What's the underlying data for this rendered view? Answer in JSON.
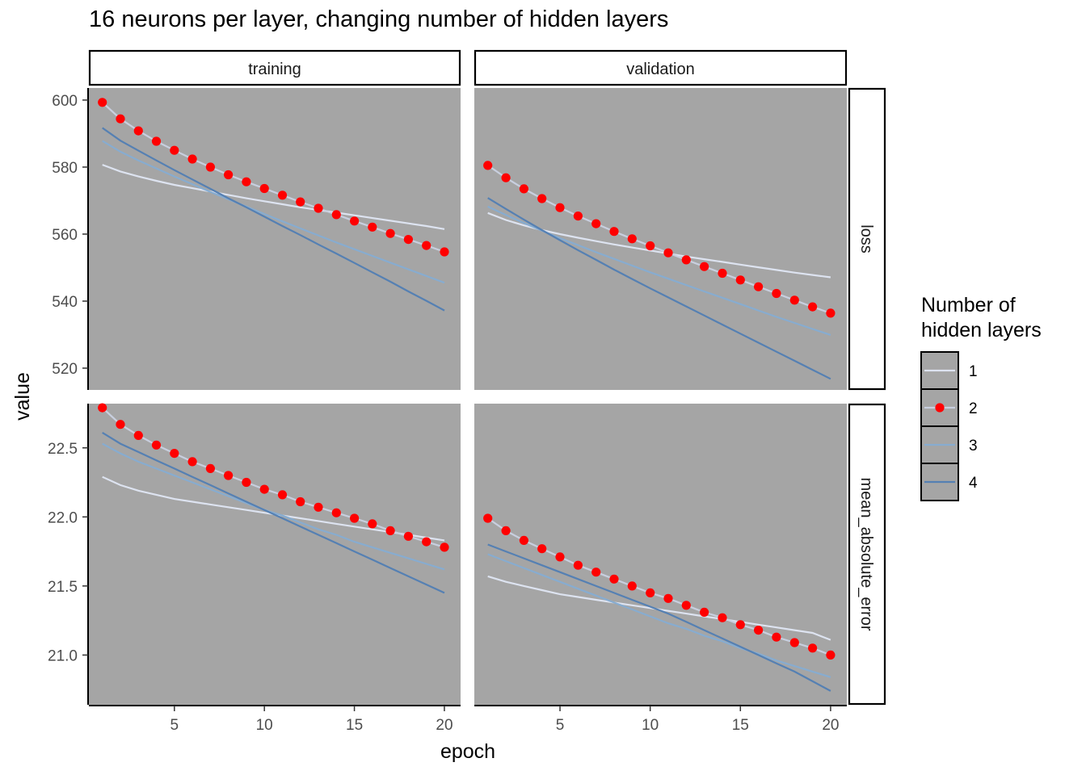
{
  "chart_data": {
    "type": "line",
    "title": "16 neurons per layer, changing number of hidden layers",
    "xlabel": "epoch",
    "ylabel": "value",
    "columns": [
      "training",
      "validation"
    ],
    "rows": [
      "loss",
      "mean_absolute_error"
    ],
    "x": [
      1,
      2,
      3,
      4,
      5,
      6,
      7,
      8,
      9,
      10,
      11,
      12,
      13,
      14,
      15,
      16,
      17,
      18,
      19,
      20
    ],
    "x_ticks": [
      5,
      10,
      15,
      20
    ],
    "xlim": [
      0.25,
      20.9
    ],
    "row_axes": {
      "loss": {
        "ylim": [
          513.5,
          603.6
        ],
        "ticks": [
          520,
          540,
          560,
          580,
          600
        ],
        "tick_labels": [
          "520",
          "540",
          "560",
          "580",
          "600"
        ]
      },
      "mean_absolute_error": {
        "ylim": [
          20.64,
          22.82
        ],
        "ticks": [
          21.0,
          21.5,
          22.0,
          22.5
        ],
        "tick_labels": [
          "21.0",
          "21.5",
          "22.0",
          "22.5"
        ]
      }
    },
    "legend": {
      "title_lines": [
        "Number of",
        "hidden layers"
      ],
      "entries": [
        "1",
        "2",
        "3",
        "4"
      ],
      "position": "right"
    },
    "panel_background": "#a5a5a5",
    "series_styles": {
      "1": {
        "color": "#dde3f0",
        "marker": "none"
      },
      "2": {
        "color": "#c8cfdf",
        "marker": "point",
        "marker_color": "#ff0000"
      },
      "3": {
        "color": "#87acd0",
        "marker": "none"
      },
      "4": {
        "color": "#5580b3",
        "marker": "none"
      }
    },
    "panels": [
      {
        "column": "training",
        "row": "loss",
        "series": [
          {
            "name": "1",
            "values": [
              580.7,
              578.7,
              577.2,
              575.9,
              574.7,
              573.7,
              572.7,
              571.7,
              570.7,
              569.8,
              568.9,
              568.0,
              567.2,
              566.4,
              565.6,
              564.8,
              564.0,
              563.2,
              562.4,
              561.5
            ]
          },
          {
            "name": "2",
            "values": [
              599.3,
              594.4,
              590.8,
              587.7,
              585.0,
              582.4,
              580.0,
              577.7,
              575.6,
              573.6,
              571.6,
              569.6,
              567.7,
              565.8,
              563.9,
              562.1,
              560.2,
              558.4,
              556.6,
              554.7
            ]
          },
          {
            "name": "3",
            "values": [
              587.8,
              584.6,
              582.0,
              579.6,
              577.2,
              574.9,
              572.6,
              570.4,
              568.2,
              566.0,
              563.8,
              561.7,
              559.6,
              557.5,
              555.5,
              553.5,
              551.5,
              549.5,
              547.5,
              545.5
            ]
          },
          {
            "name": "4",
            "values": [
              591.7,
              587.9,
              584.9,
              582.0,
              579.1,
              576.3,
              573.5,
              570.7,
              568.0,
              565.2,
              562.4,
              559.7,
              556.9,
              554.2,
              551.4,
              548.6,
              545.8,
              542.9,
              540.1,
              537.2
            ]
          }
        ]
      },
      {
        "column": "validation",
        "row": "loss",
        "series": [
          {
            "name": "1",
            "values": [
              566.3,
              564.2,
              562.6,
              561.2,
              560.0,
              558.9,
              557.9,
              556.9,
              556.0,
              555.1,
              554.2,
              553.3,
              552.5,
              551.7,
              550.9,
              550.1,
              549.3,
              548.5,
              547.8,
              547.1
            ]
          },
          {
            "name": "2",
            "values": [
              580.5,
              576.8,
              573.5,
              570.6,
              567.9,
              565.4,
              563.1,
              560.8,
              558.6,
              556.5,
              554.4,
              552.3,
              550.3,
              548.3,
              546.3,
              544.3,
              542.3,
              540.3,
              538.3,
              536.4
            ]
          },
          {
            "name": "3",
            "values": [
              568.2,
              565.7,
              563.3,
              561.0,
              558.8,
              556.7,
              554.6,
              552.6,
              550.6,
              548.6,
              546.7,
              544.8,
              542.9,
              541.0,
              539.1,
              537.2,
              535.3,
              533.5,
              531.7,
              529.9
            ]
          },
          {
            "name": "4",
            "values": [
              570.8,
              567.5,
              564.3,
              561.2,
              558.2,
              555.2,
              552.3,
              549.4,
              546.6,
              543.8,
              541.1,
              538.4,
              535.7,
              533.0,
              530.3,
              527.6,
              524.9,
              522.2,
              519.5,
              516.8
            ]
          }
        ]
      },
      {
        "column": "training",
        "row": "mean_absolute_error",
        "series": [
          {
            "name": "1",
            "values": [
              22.29,
              22.23,
              22.19,
              22.16,
              22.13,
              22.11,
              22.09,
              22.07,
              22.05,
              22.03,
              22.01,
              21.99,
              21.97,
              21.95,
              21.93,
              21.91,
              21.89,
              21.87,
              21.85,
              21.83
            ]
          },
          {
            "name": "2",
            "values": [
              22.79,
              22.67,
              22.59,
              22.52,
              22.46,
              22.4,
              22.35,
              22.3,
              22.25,
              22.2,
              22.16,
              22.11,
              22.07,
              22.03,
              21.99,
              21.95,
              21.9,
              21.86,
              21.82,
              21.78
            ]
          },
          {
            "name": "3",
            "values": [
              22.53,
              22.46,
              22.4,
              22.35,
              22.3,
              22.25,
              22.2,
              22.15,
              22.1,
              22.05,
              22.01,
              21.96,
              21.91,
              21.87,
              21.82,
              21.78,
              21.74,
              21.7,
              21.66,
              21.62
            ]
          },
          {
            "name": "4",
            "values": [
              22.61,
              22.53,
              22.47,
              22.41,
              22.35,
              22.29,
              22.23,
              22.17,
              22.11,
              22.05,
              21.99,
              21.93,
              21.87,
              21.81,
              21.75,
              21.69,
              21.63,
              21.57,
              21.51,
              21.45
            ]
          }
        ]
      },
      {
        "column": "validation",
        "row": "mean_absolute_error",
        "series": [
          {
            "name": "1",
            "values": [
              21.57,
              21.53,
              21.5,
              21.47,
              21.44,
              21.42,
              21.4,
              21.38,
              21.36,
              21.34,
              21.32,
              21.3,
              21.28,
              21.26,
              21.24,
              21.22,
              21.2,
              21.18,
              21.16,
              21.11
            ]
          },
          {
            "name": "2",
            "values": [
              21.99,
              21.9,
              21.83,
              21.77,
              21.71,
              21.65,
              21.6,
              21.55,
              21.5,
              21.45,
              21.41,
              21.36,
              21.31,
              21.27,
              21.22,
              21.18,
              21.13,
              21.09,
              21.05,
              21.0
            ]
          },
          {
            "name": "3",
            "values": [
              21.73,
              21.68,
              21.63,
              21.58,
              21.53,
              21.48,
              21.43,
              21.38,
              21.33,
              21.28,
              21.23,
              21.19,
              21.14,
              21.1,
              21.05,
              21.01,
              20.96,
              20.92,
              20.88,
              20.84
            ]
          },
          {
            "name": "4",
            "values": [
              21.8,
              21.75,
              21.7,
              21.65,
              21.6,
              21.55,
              21.5,
              21.45,
              21.4,
              21.35,
              21.3,
              21.24,
              21.18,
              21.12,
              21.06,
              21.0,
              20.94,
              20.88,
              20.81,
              20.74
            ]
          }
        ]
      }
    ]
  }
}
